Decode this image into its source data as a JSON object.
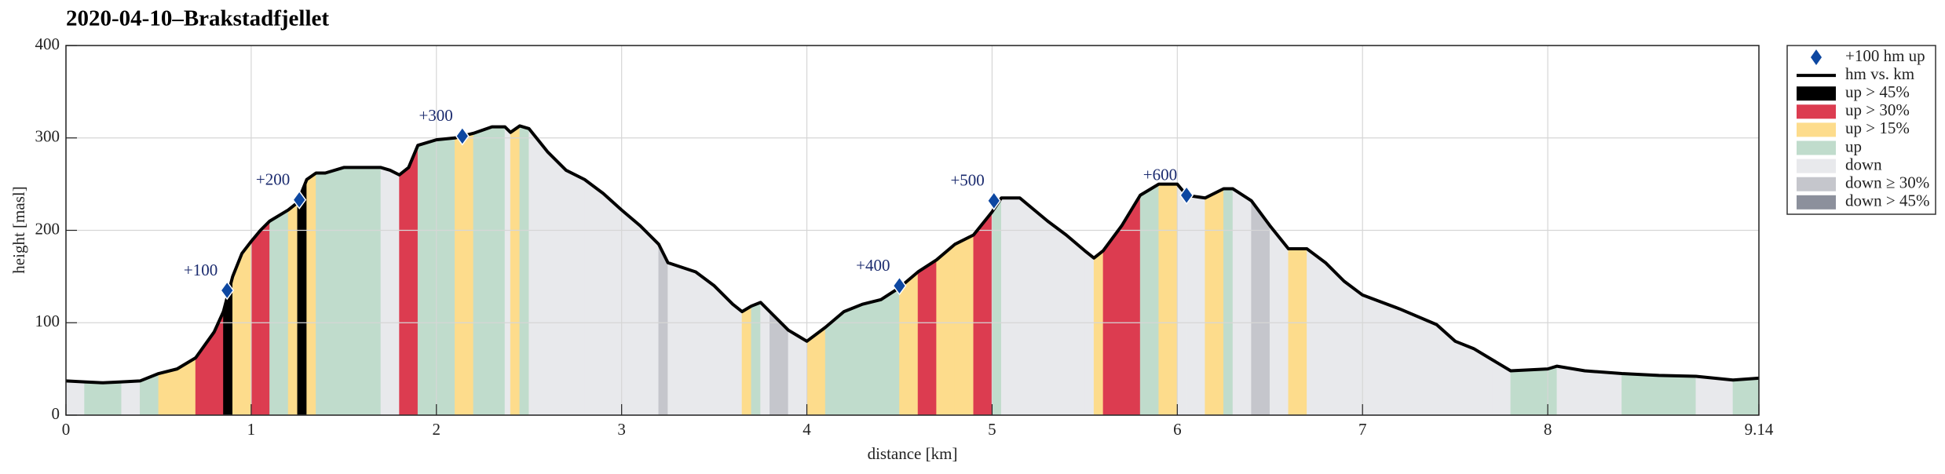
{
  "chart_data": {
    "type": "line",
    "title": "2020-04-10–Brakstadfjellet",
    "xlabel": "distance [km]",
    "ylabel": "height [masl]",
    "xlim": [
      0,
      9.14
    ],
    "ylim": [
      0,
      400
    ],
    "xticks": [
      0,
      1,
      2,
      3,
      4,
      5,
      6,
      7,
      8,
      9.14
    ],
    "yticks": [
      0,
      100,
      200,
      300,
      400
    ],
    "grid": true,
    "legend": "outside right",
    "series": [
      {
        "name": "+100 hm up",
        "type": "marker",
        "color": "#0d47a1",
        "x": [
          0.87,
          1.26,
          2.14,
          4.5,
          5.01,
          6.05
        ],
        "y": [
          135,
          233,
          302,
          140,
          232,
          238
        ],
        "labels": [
          "+100",
          "+200",
          "+300",
          "+400",
          "+500",
          "+600"
        ]
      },
      {
        "name": "hm vs. km",
        "type": "line",
        "color": "#000000",
        "x": [
          0,
          0.1,
          0.2,
          0.3,
          0.4,
          0.5,
          0.6,
          0.7,
          0.8,
          0.85,
          0.9,
          0.95,
          1.0,
          1.05,
          1.1,
          1.2,
          1.25,
          1.3,
          1.35,
          1.4,
          1.5,
          1.6,
          1.7,
          1.75,
          1.8,
          1.85,
          1.9,
          2.0,
          2.1,
          2.2,
          2.3,
          2.37,
          2.4,
          2.45,
          2.5,
          2.6,
          2.7,
          2.8,
          2.9,
          3.0,
          3.1,
          3.2,
          3.25,
          3.4,
          3.5,
          3.6,
          3.65,
          3.7,
          3.75,
          3.8,
          3.9,
          4.0,
          4.1,
          4.2,
          4.3,
          4.4,
          4.5,
          4.6,
          4.7,
          4.8,
          4.9,
          5.0,
          5.05,
          5.15,
          5.3,
          5.4,
          5.5,
          5.55,
          5.6,
          5.7,
          5.8,
          5.9,
          6.0,
          6.05,
          6.15,
          6.25,
          6.3,
          6.4,
          6.5,
          6.6,
          6.7,
          6.8,
          6.9,
          7.0,
          7.2,
          7.4,
          7.5,
          7.6,
          7.7,
          7.8,
          8.0,
          8.05,
          8.2,
          8.4,
          8.6,
          8.8,
          9.0,
          9.14
        ],
        "y": [
          37,
          36,
          35,
          36,
          37,
          45,
          50,
          62,
          90,
          112,
          150,
          175,
          188,
          200,
          210,
          222,
          230,
          255,
          262,
          262,
          268,
          268,
          268,
          265,
          260,
          268,
          292,
          298,
          300,
          305,
          312,
          312,
          306,
          313,
          310,
          285,
          265,
          255,
          240,
          222,
          205,
          185,
          165,
          155,
          140,
          120,
          112,
          118,
          122,
          112,
          92,
          80,
          95,
          112,
          120,
          125,
          138,
          155,
          168,
          185,
          195,
          220,
          235,
          235,
          210,
          195,
          178,
          170,
          178,
          205,
          238,
          250,
          250,
          238,
          235,
          245,
          245,
          232,
          205,
          180,
          180,
          165,
          145,
          130,
          115,
          98,
          80,
          72,
          60,
          48,
          50,
          53,
          48,
          45,
          43,
          42,
          38,
          40
        ]
      }
    ],
    "classes": [
      {
        "name": "up > 45%",
        "color": "#000000"
      },
      {
        "name": "up > 30%",
        "color": "#dc3c50"
      },
      {
        "name": "up > 15%",
        "color": "#fddc8c"
      },
      {
        "name": "up",
        "color": "#c0dccc"
      },
      {
        "name": "down",
        "color": "#e8e9ec"
      },
      {
        "name": "down ≥ 30%",
        "color": "#c5c6cc"
      },
      {
        "name": "down > 45%",
        "color": "#8c909c"
      }
    ],
    "segment_class": [
      4,
      3,
      3,
      4,
      3,
      2,
      2,
      1,
      1,
      0,
      2,
      2,
      1,
      1,
      3,
      2,
      0,
      2,
      3,
      3,
      3,
      3,
      4,
      4,
      1,
      1,
      3,
      3,
      2,
      3,
      3,
      4,
      2,
      3,
      4,
      4,
      4,
      4,
      4,
      4,
      4,
      5,
      4,
      4,
      4,
      4,
      2,
      3,
      4,
      5,
      4,
      2,
      3,
      3,
      3,
      3,
      2,
      1,
      2,
      2,
      1,
      3,
      4,
      4,
      4,
      4,
      4,
      2,
      1,
      1,
      3,
      2,
      4,
      4,
      2,
      3,
      4,
      5,
      4,
      2,
      4,
      4,
      4,
      4,
      4,
      4,
      4,
      4,
      4,
      3,
      3,
      4,
      4,
      3,
      3,
      4,
      3
    ]
  }
}
